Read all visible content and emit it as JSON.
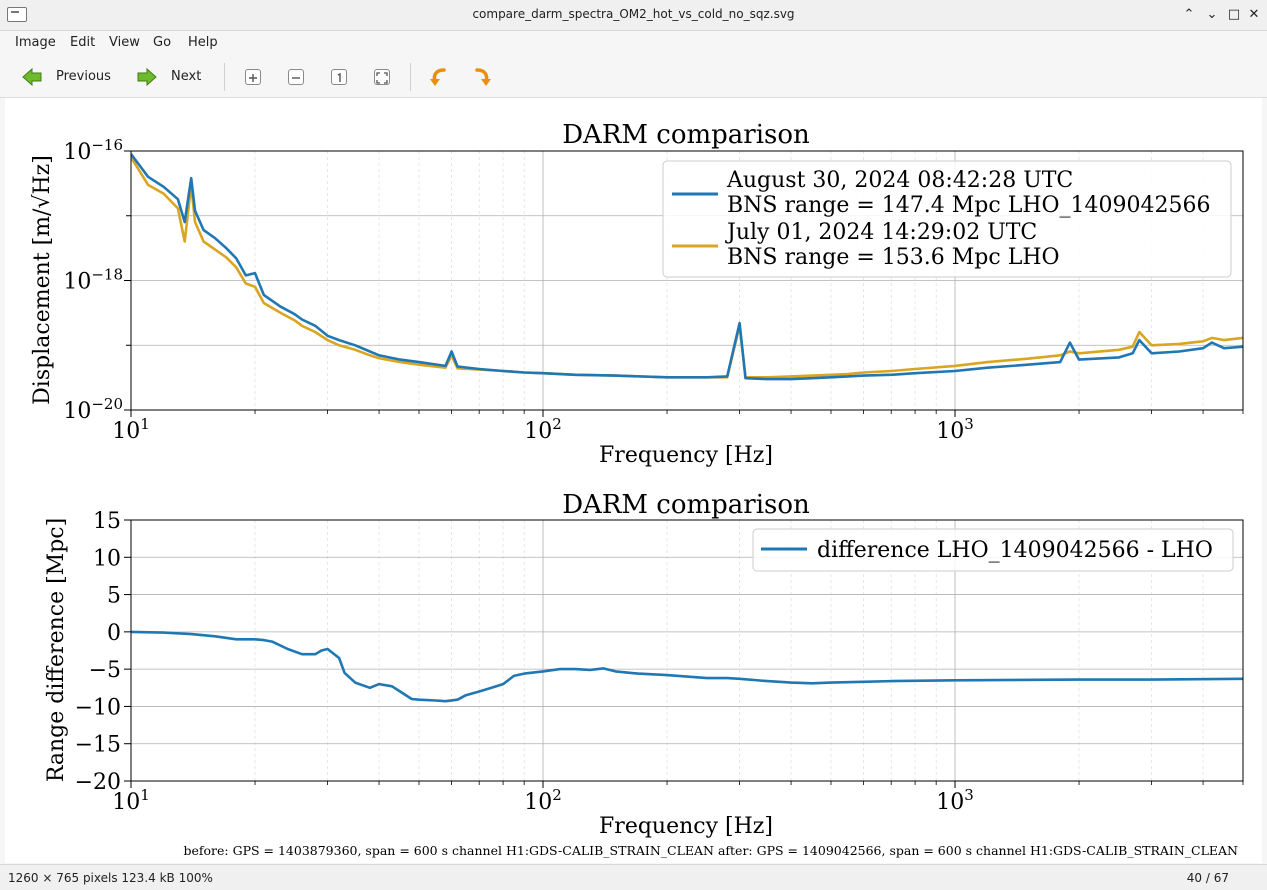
{
  "window": {
    "title": "compare_darm_spectra_OM2_hot_vs_cold_no_sqz.svg",
    "minimize_glyph": "⌃",
    "restore_glyph": "⌄",
    "maximize_glyph": "□",
    "close_glyph": "✕"
  },
  "menu": {
    "items": [
      "Image",
      "Edit",
      "View",
      "Go",
      "Help"
    ]
  },
  "toolbar": {
    "previous_label": "Previous",
    "next_label": "Next",
    "icons": [
      "zoom-in-icon",
      "zoom-out-icon",
      "zoom-normal-icon",
      "zoom-fit-icon",
      "rotate-left-icon",
      "rotate-right-icon"
    ]
  },
  "status": {
    "image_info": "1260 × 765 pixels  123.4 kB   100%",
    "position": "40 / 67"
  },
  "footer_note": "before: GPS = 1403879360, span = 600 s channel H1:GDS-CALIB_STRAIN_CLEAN after: GPS = 1409042566, span = 600 s channel H1:GDS-CALIB_STRAIN_CLEAN",
  "colors": {
    "series1": "#1f77b4",
    "series2": "#daa520"
  },
  "chart_data": [
    {
      "type": "line",
      "title": "DARM comparison",
      "xlabel": "Frequency [Hz]",
      "ylabel": "Displacement [m/√Hz]",
      "xscale": "log",
      "yscale": "log",
      "xlim": [
        10,
        5000
      ],
      "ylim": [
        1e-20,
        1e-16
      ],
      "x_ticks": [
        "10",
        "10",
        "10"
      ],
      "x_tick_exponents": [
        "1",
        "2",
        "3"
      ],
      "y_ticks": [
        "10",
        "10",
        "10"
      ],
      "y_tick_exponents": [
        "−16",
        "−18",
        "−20"
      ],
      "grid": true,
      "legend": "top-right",
      "series": [
        {
          "name": "August 30, 2024 08:42:28 UTC\nBNS range = 147.4 Mpc LHO_1409042566",
          "name_lines": [
            "August 30, 2024 08:42:28 UTC",
            "BNS range = 147.4 Mpc LHO_1409042566"
          ],
          "x": [
            10,
            11,
            12,
            13,
            13.5,
            14,
            14.3,
            15,
            16,
            17,
            18,
            19,
            20,
            21,
            23,
            25,
            26,
            28,
            30,
            32,
            35,
            38,
            40,
            45,
            50,
            58,
            60,
            62,
            70,
            80,
            90,
            100,
            120,
            150,
            200,
            250,
            280,
            300,
            310,
            350,
            400,
            450,
            500,
            550,
            600,
            700,
            800,
            1000,
            1200,
            1500,
            1800,
            1900,
            2000,
            2500,
            2700,
            2800,
            3000,
            3500,
            4000,
            4200,
            4500,
            5000
          ],
          "y": [
            9e-17,
            4e-17,
            2.8e-17,
            1.8e-17,
            8e-18,
            3.8e-17,
            1.2e-17,
            6e-18,
            4.5e-18,
            3.2e-18,
            2.2e-18,
            1.2e-18,
            1.3e-18,
            6e-19,
            4e-19,
            3e-19,
            2.5e-19,
            2e-19,
            1.4e-19,
            1.2e-19,
            1e-19,
            8e-20,
            7e-20,
            6e-20,
            5.5e-20,
            4.8e-20,
            8e-20,
            4.7e-20,
            4.3e-20,
            4e-20,
            3.8e-20,
            3.7e-20,
            3.5e-20,
            3.4e-20,
            3.2e-20,
            3.2e-20,
            3.3e-20,
            2.2e-19,
            3.1e-20,
            3e-20,
            3e-20,
            3.1e-20,
            3.2e-20,
            3.3e-20,
            3.4e-20,
            3.5e-20,
            3.7e-20,
            4e-20,
            4.5e-20,
            5e-20,
            5.5e-20,
            1.1e-19,
            6e-20,
            6.5e-20,
            7.5e-20,
            1.2e-19,
            7.5e-20,
            8e-20,
            9e-20,
            1.1e-19,
            9e-20,
            9.5e-20
          ]
        },
        {
          "name": "July 01, 2024 14:29:02 UTC\nBNS range = 153.6 Mpc LHO",
          "name_lines": [
            "July 01, 2024 14:29:02 UTC",
            "BNS range = 153.6 Mpc LHO"
          ],
          "x": [
            10,
            11,
            12,
            13,
            13.5,
            14,
            14.3,
            15,
            16,
            17,
            18,
            19,
            20,
            21,
            23,
            25,
            26,
            28,
            30,
            32,
            35,
            38,
            40,
            45,
            50,
            58,
            60,
            62,
            70,
            80,
            90,
            100,
            120,
            150,
            200,
            250,
            280,
            300,
            310,
            350,
            400,
            450,
            500,
            550,
            600,
            700,
            800,
            1000,
            1200,
            1500,
            1800,
            1900,
            2000,
            2500,
            2700,
            2800,
            3000,
            3500,
            4000,
            4200,
            4500,
            5000
          ],
          "y": [
            8e-17,
            3e-17,
            2.2e-17,
            1.3e-17,
            4e-18,
            3e-17,
            8e-18,
            4e-18,
            3e-18,
            2.3e-18,
            1.6e-18,
            9e-19,
            8e-19,
            4.5e-19,
            3.2e-19,
            2.4e-19,
            2e-19,
            1.6e-19,
            1.2e-19,
            1e-19,
            8.5e-20,
            7e-20,
            6.3e-20,
            5.5e-20,
            5e-20,
            4.5e-20,
            7e-20,
            4.4e-20,
            4.2e-20,
            4e-20,
            3.8e-20,
            3.7e-20,
            3.5e-20,
            3.4e-20,
            3.2e-20,
            3.2e-20,
            3.2e-20,
            2e-19,
            3.2e-20,
            3.2e-20,
            3.3e-20,
            3.4e-20,
            3.5e-20,
            3.6e-20,
            3.8e-20,
            4e-20,
            4.3e-20,
            4.8e-20,
            5.5e-20,
            6.2e-20,
            7e-20,
            8e-20,
            7.5e-20,
            8.5e-20,
            9.5e-20,
            1.6e-19,
            1e-19,
            1.05e-19,
            1.15e-19,
            1.3e-19,
            1.2e-19,
            1.3e-19
          ]
        }
      ]
    },
    {
      "type": "line",
      "title": "DARM comparison",
      "xlabel": "Frequency [Hz]",
      "ylabel": "Range difference [Mpc]",
      "xscale": "log",
      "xlim": [
        10,
        5000
      ],
      "ylim": [
        -20,
        15
      ],
      "x_ticks": [
        "10",
        "10",
        "10"
      ],
      "x_tick_exponents": [
        "1",
        "2",
        "3"
      ],
      "y_ticks": [
        "15",
        "10",
        "5",
        "0",
        "−5",
        "−10",
        "−15",
        "−20"
      ],
      "grid": true,
      "legend": "top-right",
      "series": [
        {
          "name": "difference LHO_1409042566 - LHO",
          "x": [
            10,
            12,
            14,
            16,
            18,
            20,
            21,
            22,
            24,
            26,
            28,
            29,
            30,
            32,
            33,
            35,
            38,
            40,
            43,
            45,
            48,
            50,
            55,
            58,
            62,
            65,
            70,
            75,
            80,
            85,
            90,
            100,
            110,
            120,
            130,
            140,
            150,
            170,
            200,
            250,
            280,
            300,
            350,
            400,
            450,
            500,
            600,
            700,
            1000,
            2000,
            3000,
            5000
          ],
          "y": [
            0,
            -0.1,
            -0.3,
            -0.6,
            -1.0,
            -1.0,
            -1.1,
            -1.3,
            -2.3,
            -3.0,
            -3.0,
            -2.5,
            -2.3,
            -3.5,
            -5.5,
            -6.8,
            -7.5,
            -7.0,
            -7.3,
            -8.0,
            -9.0,
            -9.1,
            -9.2,
            -9.3,
            -9.1,
            -8.5,
            -8.0,
            -7.5,
            -7.0,
            -5.9,
            -5.6,
            -5.3,
            -5.0,
            -5.0,
            -5.1,
            -4.9,
            -5.3,
            -5.6,
            -5.8,
            -6.2,
            -6.2,
            -6.3,
            -6.6,
            -6.8,
            -6.9,
            -6.8,
            -6.7,
            -6.6,
            -6.5,
            -6.4,
            -6.4,
            -6.3
          ]
        }
      ]
    }
  ]
}
